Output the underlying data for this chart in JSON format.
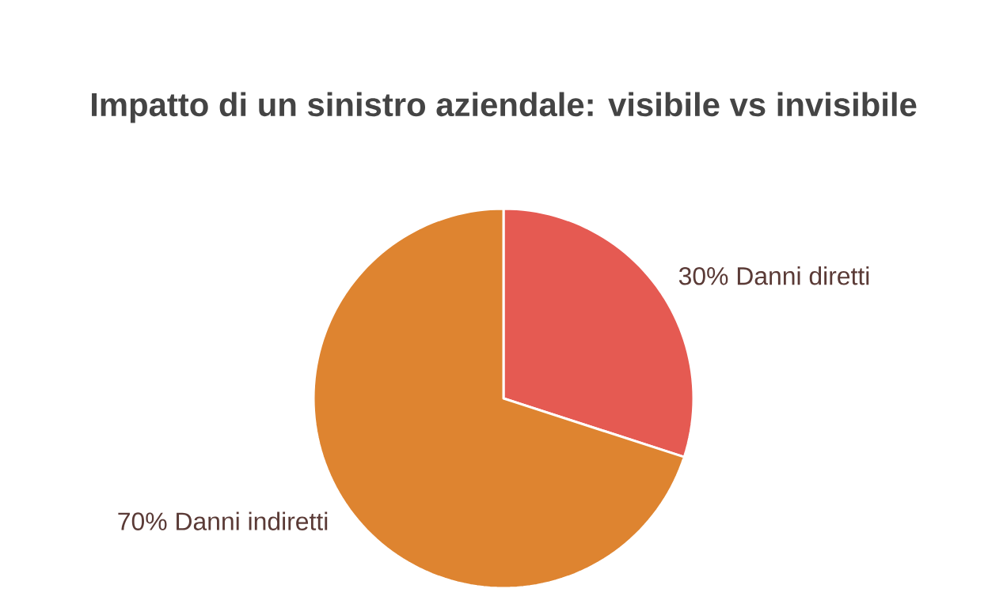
{
  "chart_data": {
    "type": "pie",
    "title": "Impatto di un sinistro aziendale: visibile vs invisibile",
    "categories": [
      "Danni diretti",
      "Danni indiretti"
    ],
    "values": [
      30,
      70
    ],
    "value_labels": [
      "30%",
      "70%"
    ],
    "colors": [
      "#e55a52",
      "#de8430"
    ]
  }
}
